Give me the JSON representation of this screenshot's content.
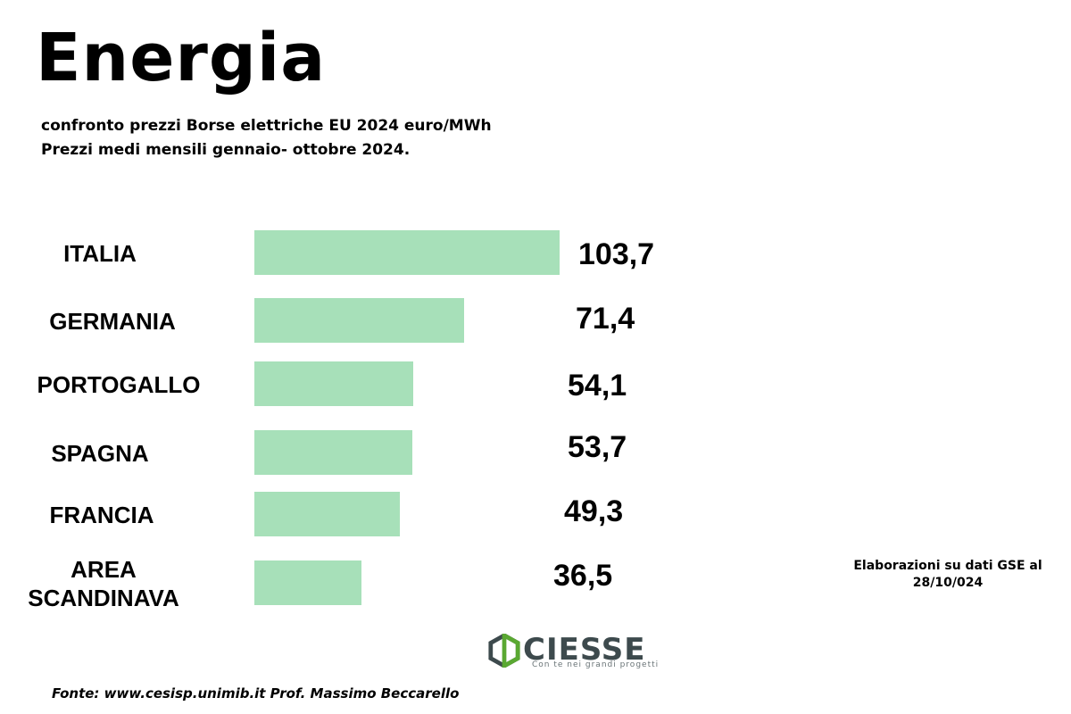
{
  "page": {
    "title": "Energia",
    "subtitle_line1": "confronto prezzi Borse elettriche EU 2024 euro/MWh",
    "subtitle_line2": "Prezzi medi mensili gennaio- ottobre 2024.",
    "source_note": "Elaborazioni su dati GSE al 28/10/024",
    "footer": "Fonte: www.cesisp.unimib.it Prof. Massimo Beccarello"
  },
  "logo": {
    "name": "CIESSE",
    "tagline": "Con te nei grandi progetti",
    "icon": "hexagon-logo-icon",
    "color": "#3d4a4d",
    "accent": "#5aa832"
  },
  "colors": {
    "bar": "#a7e0b9"
  },
  "chart_data": {
    "type": "bar",
    "orientation": "horizontal",
    "categories": [
      "ITALIA",
      "GERMANIA",
      "PORTOGALLO",
      "SPAGNA",
      "FRANCIA",
      "AREA SCANDINAVA"
    ],
    "values": [
      103.7,
      71.4,
      54.1,
      53.7,
      49.3,
      36.5
    ],
    "value_labels": [
      "103,7",
      "71,4",
      "54,1",
      "53,7",
      "49,3",
      "36,5"
    ],
    "unit": "euro/MWh",
    "title": "Energia",
    "xlabel": "",
    "ylabel": "",
    "grid": false,
    "legend": "none"
  }
}
